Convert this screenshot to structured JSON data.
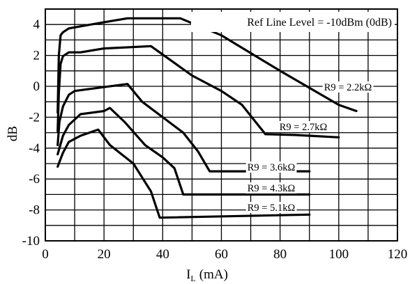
{
  "chart_data": {
    "type": "line",
    "title": "",
    "xlabel": "I",
    "xlabel_sub": "L",
    "xlabel_unit": "(mA)",
    "ylabel": "dB",
    "xlim": [
      0,
      120
    ],
    "ylim": [
      -10,
      5
    ],
    "xticks": [
      0,
      20,
      40,
      60,
      80,
      100,
      120
    ],
    "yticks": [
      4,
      2,
      0,
      -2,
      -4,
      -6,
      -8,
      -10
    ],
    "x_gridlines": [
      0,
      10,
      20,
      30,
      40,
      50,
      60,
      70,
      80,
      90,
      100,
      110,
      120
    ],
    "y_gridlines": [
      5,
      4,
      3,
      2,
      1,
      0,
      -1,
      -2,
      -3,
      -4,
      -5,
      -6,
      -7,
      -8,
      -9,
      -10
    ],
    "grid": true,
    "annotation": "Ref Line Level = -10dBm (0dB)",
    "series": [
      {
        "name": "R9 = 2.2kΩ",
        "points": [
          [
            4.2,
            -1.7
          ],
          [
            4.6,
            2.0
          ],
          [
            5.2,
            3.3
          ],
          [
            6,
            3.5
          ],
          [
            8,
            3.75
          ],
          [
            20,
            4.15
          ],
          [
            28,
            4.4
          ],
          [
            46,
            4.4
          ],
          [
            60,
            3.3
          ],
          [
            80,
            1.0
          ],
          [
            100,
            -1.2
          ],
          [
            106,
            -1.6
          ]
        ]
      },
      {
        "name": "R9 = 2.7kΩ",
        "points": [
          [
            4.2,
            -2.9
          ],
          [
            4.6,
            -0.4
          ],
          [
            5.2,
            1.45
          ],
          [
            6,
            1.95
          ],
          [
            8,
            2.2
          ],
          [
            12,
            2.2
          ],
          [
            20,
            2.45
          ],
          [
            36,
            2.6
          ],
          [
            50,
            0.7
          ],
          [
            60,
            -0.3
          ],
          [
            67,
            -1.2
          ],
          [
            75,
            -3.1
          ],
          [
            85,
            -3.15
          ],
          [
            100,
            -3.3
          ]
        ]
      },
      {
        "name": "R9 = 3.6kΩ",
        "points": [
          [
            4.2,
            -3.8
          ],
          [
            4.8,
            -2.3
          ],
          [
            6,
            -1.3
          ],
          [
            8,
            -0.55
          ],
          [
            10,
            -0.3
          ],
          [
            20,
            -0.05
          ],
          [
            28,
            0.15
          ],
          [
            33,
            -1.0
          ],
          [
            40,
            -2.0
          ],
          [
            47,
            -3.0
          ],
          [
            52,
            -4.2
          ],
          [
            56,
            -5.5
          ],
          [
            90,
            -5.5
          ]
        ]
      },
      {
        "name": "R9 = 4.3kΩ",
        "points": [
          [
            4.2,
            -4.4
          ],
          [
            6,
            -3.2
          ],
          [
            8,
            -2.5
          ],
          [
            12,
            -1.8
          ],
          [
            20,
            -1.6
          ],
          [
            22,
            -1.4
          ],
          [
            27,
            -2.3
          ],
          [
            34,
            -3.8
          ],
          [
            40,
            -4.6
          ],
          [
            44,
            -5.3
          ],
          [
            47,
            -7.0
          ],
          [
            90,
            -7.0
          ]
        ]
      },
      {
        "name": "R9 = 5.1kΩ",
        "points": [
          [
            4.2,
            -5.2
          ],
          [
            6,
            -4.3
          ],
          [
            8,
            -3.6
          ],
          [
            12,
            -3.2
          ],
          [
            18,
            -2.8
          ],
          [
            22,
            -3.8
          ],
          [
            30,
            -5.0
          ],
          [
            36,
            -6.8
          ],
          [
            39,
            -8.5
          ],
          [
            90,
            -8.3
          ]
        ]
      }
    ]
  }
}
